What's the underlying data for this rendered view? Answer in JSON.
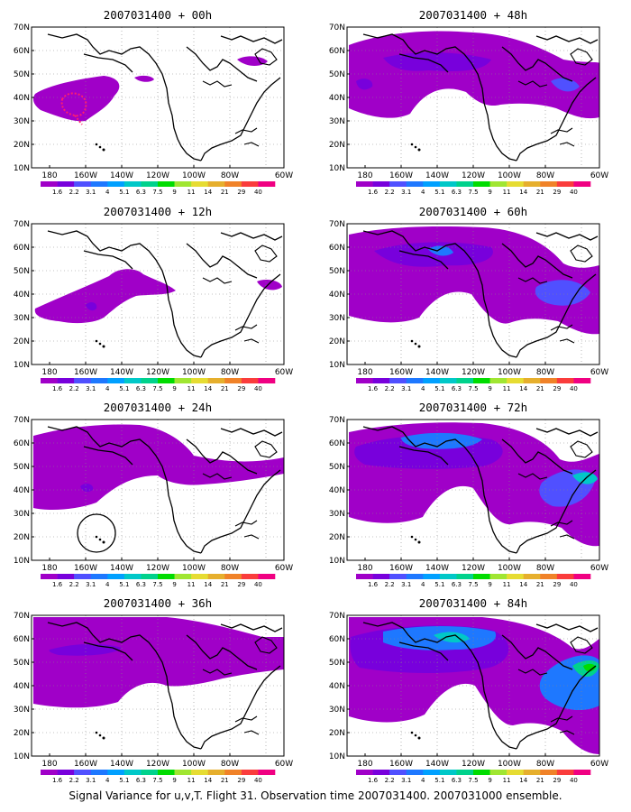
{
  "panels": [
    {
      "title": "2007031400 + 00h",
      "forecast_hour": 0
    },
    {
      "title": "2007031400 + 48h",
      "forecast_hour": 48
    },
    {
      "title": "2007031400 + 12h",
      "forecast_hour": 12
    },
    {
      "title": "2007031400 + 60h",
      "forecast_hour": 60
    },
    {
      "title": "2007031400 + 24h",
      "forecast_hour": 24
    },
    {
      "title": "2007031400 + 72h",
      "forecast_hour": 72
    },
    {
      "title": "2007031400 + 36h",
      "forecast_hour": 36
    },
    {
      "title": "2007031400 + 84h",
      "forecast_hour": 84
    }
  ],
  "axes": {
    "lon_labels": [
      "180",
      "160W",
      "140W",
      "120W",
      "100W",
      "80W",
      "60W"
    ],
    "lat_labels": [
      "10N",
      "20N",
      "30N",
      "40N",
      "50N",
      "60N",
      "70N"
    ]
  },
  "colorbar": {
    "labels": [
      "1.6",
      "2.2",
      "3.1",
      "4",
      "5.1",
      "6.3",
      "7.5",
      "9",
      "11",
      "14",
      "21",
      "29",
      "40"
    ],
    "colors": [
      "#a000c8",
      "#7800dc",
      "#5050ff",
      "#1e78ff",
      "#00a0ff",
      "#00c8c8",
      "#00d28c",
      "#00dc00",
      "#a0e632",
      "#e6dc32",
      "#e6af2d",
      "#f08228",
      "#fa3c3c",
      "#f00082"
    ]
  },
  "footer": "Signal Variance for u,v,T. Flight 31. Observation time 2007031400. 2007031000 ensemble."
}
